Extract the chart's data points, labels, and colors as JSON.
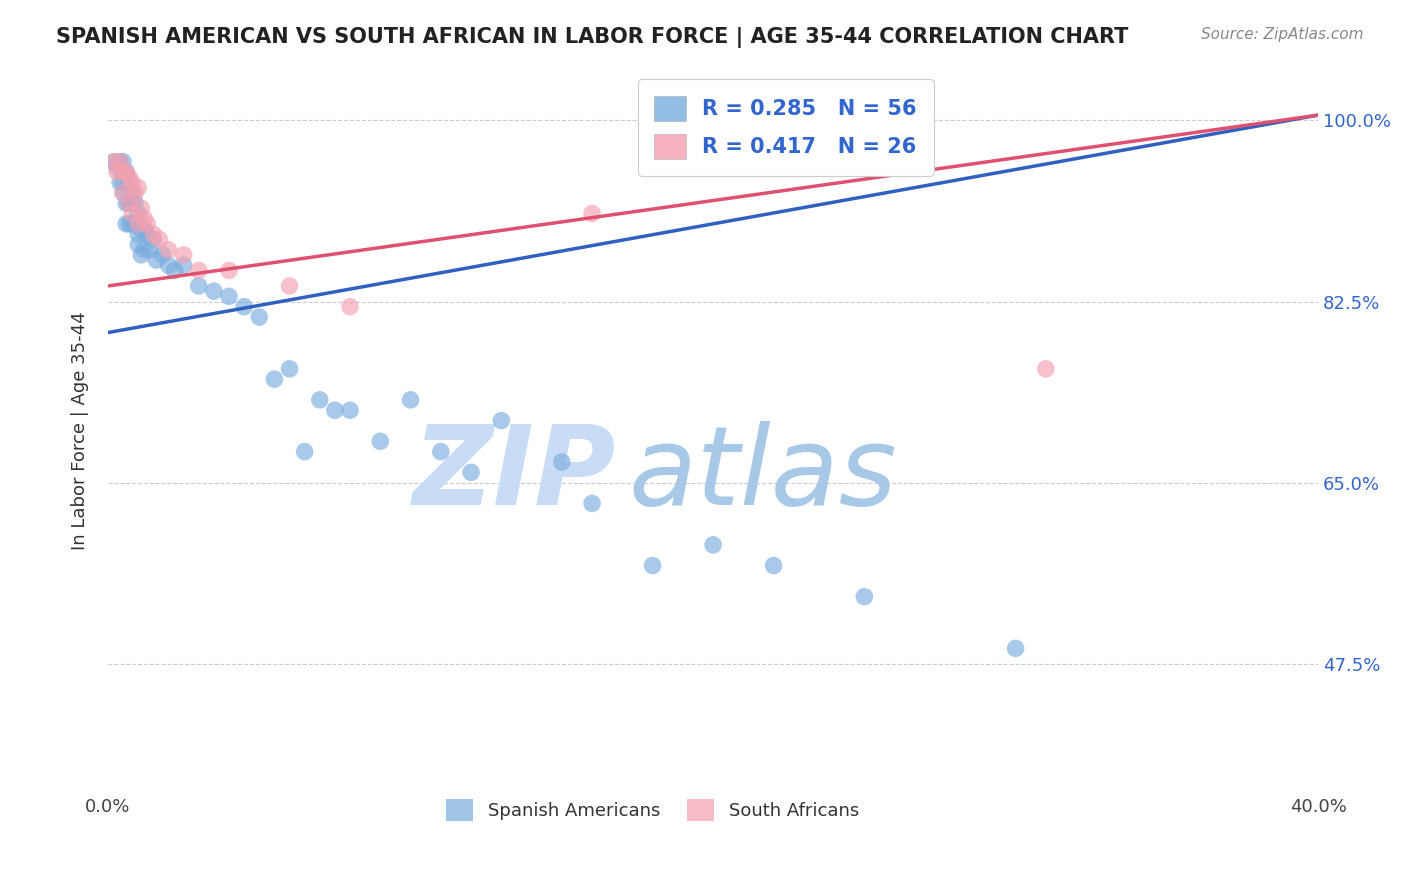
{
  "title": "SPANISH AMERICAN VS SOUTH AFRICAN IN LABOR FORCE | AGE 35-44 CORRELATION CHART",
  "source": "Source: ZipAtlas.com",
  "ylabel": "In Labor Force | Age 35-44",
  "xlim": [
    0.0,
    0.4
  ],
  "ylim": [
    0.35,
    1.05
  ],
  "xticks": [
    0.0,
    0.1,
    0.2,
    0.3,
    0.4
  ],
  "xtick_labels": [
    "0.0%",
    "",
    "",
    "",
    "40.0%"
  ],
  "ytick_labels": [
    "47.5%",
    "65.0%",
    "82.5%",
    "100.0%"
  ],
  "yticks": [
    0.475,
    0.65,
    0.825,
    1.0
  ],
  "blue_color": "#7aadde",
  "pink_color": "#f4a0b0",
  "blue_line_color": "#3060c0",
  "pink_line_color": "#e05070",
  "R_blue": 0.285,
  "N_blue": 56,
  "R_pink": 0.417,
  "N_pink": 26,
  "watermark": "ZIPatlas",
  "watermark_blue": "#c8ddf5",
  "watermark_atlas": "#a8c8e8",
  "legend_label_blue": "Spanish Americans",
  "legend_label_pink": "South Africans",
  "blue_points_x": [
    0.002,
    0.003,
    0.004,
    0.004,
    0.005,
    0.005,
    0.005,
    0.006,
    0.006,
    0.006,
    0.007,
    0.007,
    0.007,
    0.008,
    0.008,
    0.008,
    0.009,
    0.009,
    0.01,
    0.01,
    0.01,
    0.011,
    0.011,
    0.012,
    0.012,
    0.013,
    0.014,
    0.015,
    0.016,
    0.018,
    0.02,
    0.022,
    0.025,
    0.03,
    0.035,
    0.04,
    0.045,
    0.05,
    0.055,
    0.06,
    0.065,
    0.07,
    0.075,
    0.08,
    0.09,
    0.1,
    0.11,
    0.12,
    0.13,
    0.15,
    0.16,
    0.18,
    0.2,
    0.22,
    0.25,
    0.3
  ],
  "blue_points_y": [
    0.96,
    0.955,
    0.96,
    0.94,
    0.96,
    0.94,
    0.93,
    0.95,
    0.92,
    0.9,
    0.94,
    0.92,
    0.9,
    0.93,
    0.92,
    0.9,
    0.92,
    0.9,
    0.91,
    0.89,
    0.88,
    0.895,
    0.87,
    0.895,
    0.875,
    0.89,
    0.875,
    0.885,
    0.865,
    0.87,
    0.86,
    0.855,
    0.86,
    0.84,
    0.835,
    0.83,
    0.82,
    0.81,
    0.75,
    0.76,
    0.68,
    0.73,
    0.72,
    0.72,
    0.69,
    0.73,
    0.68,
    0.66,
    0.71,
    0.67,
    0.63,
    0.57,
    0.59,
    0.57,
    0.54,
    0.49
  ],
  "pink_points_x": [
    0.002,
    0.003,
    0.004,
    0.005,
    0.005,
    0.006,
    0.007,
    0.007,
    0.008,
    0.008,
    0.009,
    0.01,
    0.01,
    0.011,
    0.012,
    0.013,
    0.015,
    0.017,
    0.02,
    0.025,
    0.03,
    0.04,
    0.06,
    0.08,
    0.16,
    0.31
  ],
  "pink_points_y": [
    0.96,
    0.95,
    0.96,
    0.95,
    0.93,
    0.95,
    0.945,
    0.92,
    0.94,
    0.91,
    0.93,
    0.935,
    0.9,
    0.915,
    0.905,
    0.9,
    0.89,
    0.885,
    0.875,
    0.87,
    0.855,
    0.855,
    0.84,
    0.82,
    0.91,
    0.76
  ],
  "blue_line_x0": 0.0,
  "blue_line_y0": 0.795,
  "blue_line_x1": 0.4,
  "blue_line_y1": 1.005,
  "pink_line_x0": 0.0,
  "pink_line_y0": 0.84,
  "pink_line_x1": 0.4,
  "pink_line_y1": 1.005
}
